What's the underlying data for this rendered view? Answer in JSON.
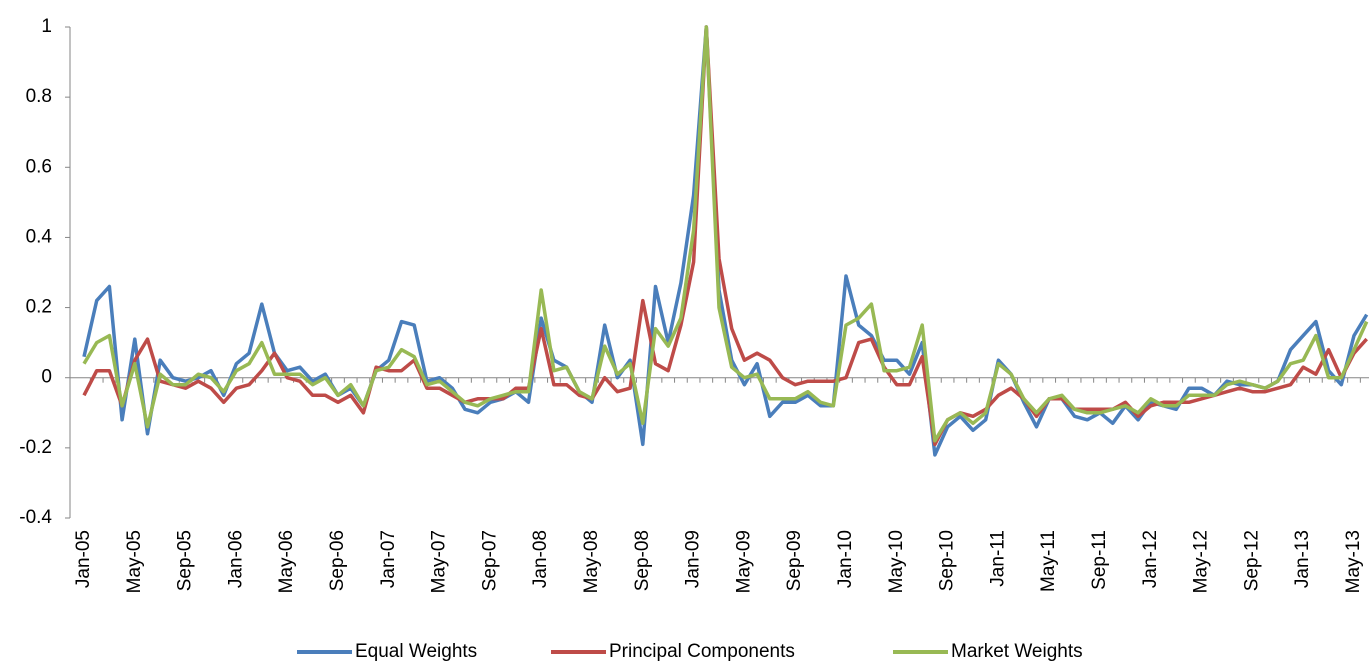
{
  "chart_data": {
    "type": "line",
    "categories": [
      "Jan-05",
      null,
      null,
      null,
      "May-05",
      null,
      null,
      null,
      "Sep-05",
      null,
      null,
      null,
      "Jan-06",
      null,
      null,
      null,
      "May-06",
      null,
      null,
      null,
      "Sep-06",
      null,
      null,
      null,
      "Jan-07",
      null,
      null,
      null,
      "May-07",
      null,
      null,
      null,
      "Sep-07",
      null,
      null,
      null,
      "Jan-08",
      null,
      null,
      null,
      "May-08",
      null,
      null,
      null,
      "Sep-08",
      null,
      null,
      null,
      "Jan-09",
      null,
      null,
      null,
      "May-09",
      null,
      null,
      null,
      "Sep-09",
      null,
      null,
      null,
      "Jan-10",
      null,
      null,
      null,
      "May-10",
      null,
      null,
      null,
      "Sep-10",
      null,
      null,
      null,
      "Jan-11",
      null,
      null,
      null,
      "May-11",
      null,
      null,
      null,
      "Sep-11",
      null,
      null,
      null,
      "Jan-12",
      null,
      null,
      null,
      "May-12",
      null,
      null,
      null,
      "Sep-12",
      null,
      null,
      null,
      "Jan-13",
      null,
      null,
      null,
      "May-13",
      null
    ],
    "series": [
      {
        "name": "Equal Weights",
        "color": "#4a7ebb",
        "values": [
          0.06,
          0.22,
          0.26,
          -0.12,
          0.11,
          -0.16,
          0.05,
          0.0,
          -0.01,
          0.0,
          0.02,
          -0.05,
          0.04,
          0.07,
          0.21,
          0.07,
          0.02,
          0.03,
          -0.01,
          0.01,
          -0.05,
          -0.03,
          -0.08,
          0.02,
          0.05,
          0.16,
          0.15,
          -0.01,
          0.0,
          -0.03,
          -0.09,
          -0.1,
          -0.07,
          -0.06,
          -0.04,
          -0.07,
          0.17,
          0.05,
          0.03,
          -0.04,
          -0.07,
          0.15,
          0.0,
          0.05,
          -0.19,
          0.26,
          0.1,
          0.27,
          0.52,
          1.0,
          0.25,
          0.05,
          -0.02,
          0.04,
          -0.11,
          -0.07,
          -0.07,
          -0.05,
          -0.08,
          -0.08,
          0.29,
          0.15,
          0.12,
          0.05,
          0.05,
          0.01,
          0.1,
          -0.22,
          -0.14,
          -0.11,
          -0.15,
          -0.12,
          0.05,
          0.01,
          -0.07,
          -0.14,
          -0.06,
          -0.06,
          -0.11,
          -0.12,
          -0.1,
          -0.13,
          -0.08,
          -0.12,
          -0.07,
          -0.08,
          -0.09,
          -0.03,
          -0.03,
          -0.05,
          -0.01,
          -0.02,
          -0.02,
          -0.03,
          -0.01,
          0.08,
          0.12,
          0.16,
          0.02,
          -0.02,
          0.12,
          0.18
        ]
      },
      {
        "name": "Principal Components",
        "color": "#be4b48",
        "values": [
          -0.05,
          0.02,
          0.02,
          -0.08,
          0.05,
          0.11,
          -0.01,
          -0.02,
          -0.03,
          -0.01,
          -0.03,
          -0.07,
          -0.03,
          -0.02,
          0.02,
          0.07,
          0.0,
          -0.01,
          -0.05,
          -0.05,
          -0.07,
          -0.05,
          -0.1,
          0.03,
          0.02,
          0.02,
          0.05,
          -0.03,
          -0.03,
          -0.05,
          -0.07,
          -0.06,
          -0.06,
          -0.06,
          -0.03,
          -0.03,
          0.14,
          -0.02,
          -0.02,
          -0.05,
          -0.06,
          0.0,
          -0.04,
          -0.03,
          0.22,
          0.04,
          0.02,
          0.15,
          0.33,
          1.0,
          0.34,
          0.14,
          0.05,
          0.07,
          0.05,
          0.0,
          -0.02,
          -0.01,
          -0.01,
          -0.01,
          0.0,
          0.1,
          0.11,
          0.03,
          -0.02,
          -0.02,
          0.06,
          -0.19,
          -0.12,
          -0.1,
          -0.11,
          -0.09,
          -0.05,
          -0.03,
          -0.06,
          -0.11,
          -0.06,
          -0.06,
          -0.09,
          -0.09,
          -0.09,
          -0.09,
          -0.07,
          -0.11,
          -0.08,
          -0.07,
          -0.07,
          -0.07,
          -0.06,
          -0.05,
          -0.04,
          -0.03,
          -0.04,
          -0.04,
          -0.03,
          -0.02,
          0.03,
          0.01,
          0.08,
          0.0,
          0.07,
          0.11
        ]
      },
      {
        "name": "Market Weights",
        "color": "#98b954",
        "values": [
          0.04,
          0.1,
          0.12,
          -0.08,
          0.04,
          -0.14,
          0.01,
          -0.02,
          -0.02,
          0.01,
          0.0,
          -0.04,
          0.02,
          0.04,
          0.1,
          0.01,
          0.01,
          0.01,
          -0.02,
          0.0,
          -0.05,
          -0.02,
          -0.08,
          0.02,
          0.03,
          0.08,
          0.06,
          -0.02,
          -0.01,
          -0.04,
          -0.07,
          -0.08,
          -0.06,
          -0.05,
          -0.04,
          -0.04,
          0.25,
          0.02,
          0.03,
          -0.04,
          -0.06,
          0.09,
          0.01,
          0.04,
          -0.13,
          0.14,
          0.09,
          0.17,
          0.42,
          1.0,
          0.2,
          0.03,
          0.0,
          0.01,
          -0.06,
          -0.06,
          -0.06,
          -0.04,
          -0.07,
          -0.08,
          0.15,
          0.17,
          0.21,
          0.02,
          0.02,
          0.03,
          0.15,
          -0.18,
          -0.12,
          -0.1,
          -0.13,
          -0.1,
          0.04,
          0.01,
          -0.06,
          -0.1,
          -0.06,
          -0.05,
          -0.09,
          -0.1,
          -0.1,
          -0.09,
          -0.08,
          -0.1,
          -0.06,
          -0.08,
          -0.08,
          -0.05,
          -0.05,
          -0.05,
          -0.02,
          -0.01,
          -0.02,
          -0.03,
          -0.01,
          0.04,
          0.05,
          0.12,
          0.0,
          0.0,
          0.08,
          0.16
        ]
      }
    ],
    "ylim": [
      -0.4,
      1
    ],
    "yticks": [
      -0.4,
      -0.2,
      0,
      0.2,
      0.4,
      0.6,
      0.8,
      1
    ],
    "grid": false,
    "legend": "bottom"
  }
}
